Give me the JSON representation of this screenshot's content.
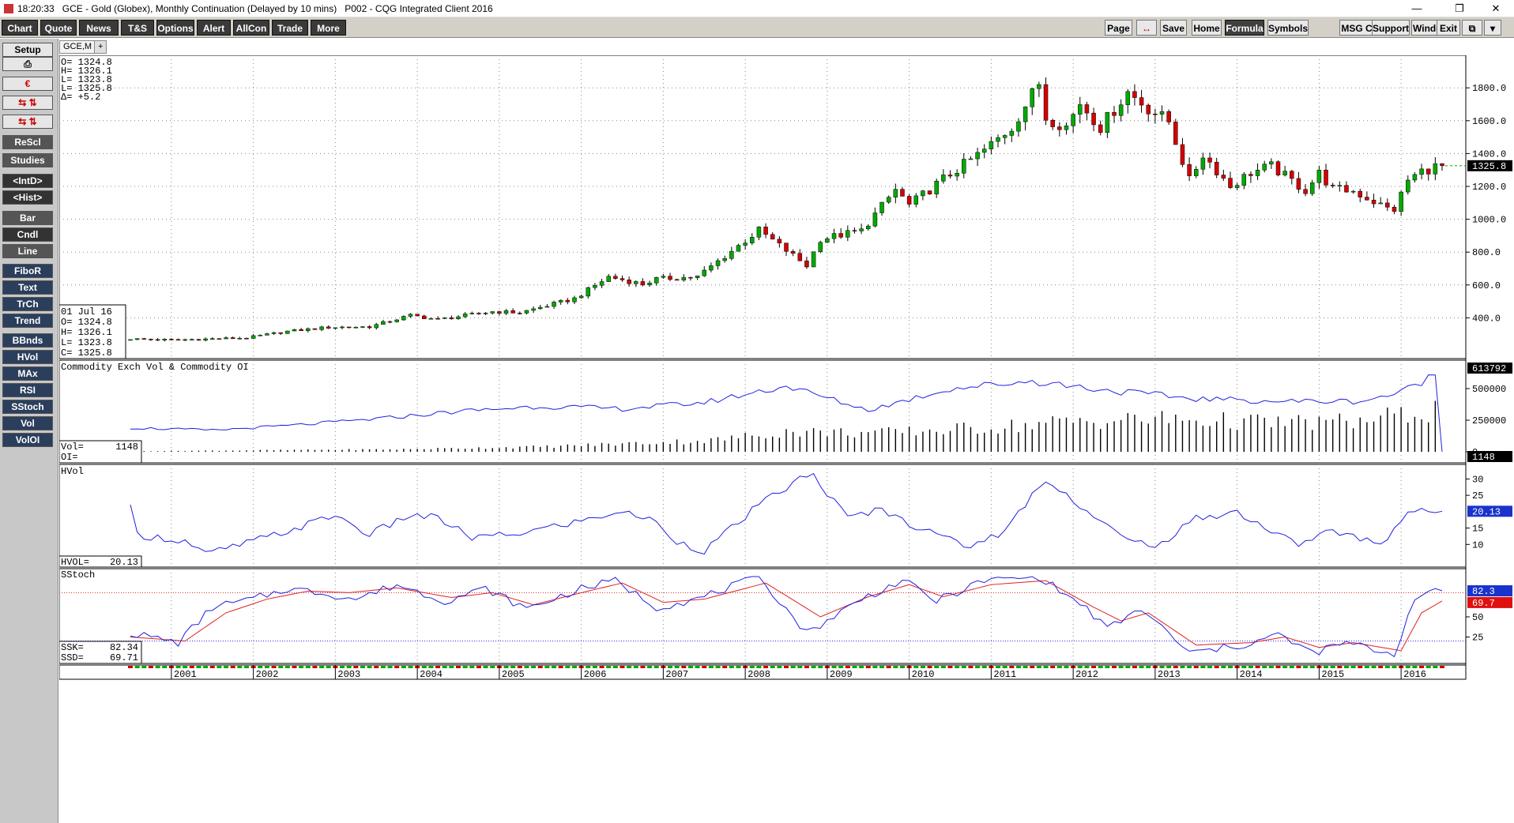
{
  "window": {
    "time": "18:20:33",
    "title": "GCE - Gold (Globex), Monthly Continuation (Delayed by 10 mins)",
    "page_id": "P002 - CQG Integrated Client 2016",
    "minimize": "—",
    "restore": "❐",
    "close": "✕"
  },
  "toolbar": {
    "left": [
      "Chart",
      "Quote",
      "News",
      "T&S",
      "Options",
      "Alert",
      "AllCon",
      "Trade",
      "More"
    ],
    "right": [
      "Page",
      "↔",
      "Save",
      "Home",
      "Formula",
      "Symbols",
      "MSG Cntr",
      "Support",
      "Window",
      "Exit",
      "⧉",
      "▾"
    ]
  },
  "tab": {
    "label": "GCE,M",
    "add": "+"
  },
  "sidebar": [
    {
      "label": "Setup",
      "style": "gray"
    },
    {
      "label": "⎙",
      "style": "gray"
    },
    {
      "label": "€",
      "style": "gray"
    },
    {
      "label": "⇆ ⇅",
      "style": "gray"
    },
    {
      "label": "⇆ ⇅",
      "style": "gray"
    },
    {
      "label": "ReScl",
      "style": "dark"
    },
    {
      "label": "Studies",
      "style": "dark"
    },
    {
      "label": "<IntD>",
      "style": "blk"
    },
    {
      "label": "<Hist>",
      "style": "blk"
    },
    {
      "label": "Bar",
      "style": "dark"
    },
    {
      "label": "Cndl",
      "style": "blk"
    },
    {
      "label": "Line",
      "style": "dark"
    },
    {
      "label": "FiboR",
      "style": "navy"
    },
    {
      "label": "Text",
      "style": "navy"
    },
    {
      "label": "TrCh",
      "style": "navy"
    },
    {
      "label": "Trend",
      "style": "navy"
    },
    {
      "label": "BBnds",
      "style": "navy"
    },
    {
      "label": "HVol",
      "style": "navy"
    },
    {
      "label": "MAx",
      "style": "navy"
    },
    {
      "label": "RSI",
      "style": "navy"
    },
    {
      "label": "SStoch",
      "style": "navy"
    },
    {
      "label": "Vol",
      "style": "navy"
    },
    {
      "label": "VolOI",
      "style": "navy"
    }
  ],
  "ohlc_top": [
    "O=  1324.8",
    "H=  1326.1",
    "L=  1323.8",
    "L=  1325.8",
    "Δ=    +5.2"
  ],
  "ohlc_box": [
    "01 Jul 16",
    "O=   1324.8",
    "H=   1326.1",
    "L=   1323.8",
    "C=   1325.8"
  ],
  "panels": {
    "price": {
      "ticks": [
        "1800.0",
        "1600.0",
        "1400.0",
        "1200.0",
        "1000.0",
        "800.0",
        "600.0",
        "400.0"
      ],
      "last": "1325.8"
    },
    "volume": {
      "title": "Commodity Exch Vol & Commodity OI",
      "ticks": [
        "500000",
        "250000",
        "0"
      ],
      "oi_badge": "613792",
      "vol_badge": "1148",
      "vol_label": "Vol=",
      "vol_value": "1148",
      "oi_label": "OI="
    },
    "hvol": {
      "title": "HVol",
      "ticks": [
        "30",
        "25",
        "15",
        "10"
      ],
      "badge": "20.13",
      "label": "HVOL=",
      "value": "20.13"
    },
    "sstoch": {
      "title": "SStoch",
      "ticks": [
        "50",
        "25"
      ],
      "badge_ssk": "82.3",
      "badge_ssd": "69.7",
      "ssk_label": "SSK=",
      "ssk_value": "82.34",
      "ssd_label": "SSD=",
      "ssd_value": "69.71"
    }
  },
  "years": [
    "2001",
    "2002",
    "2003",
    "2004",
    "2005",
    "2006",
    "2007",
    "2008",
    "2009",
    "2010",
    "2011",
    "2012",
    "2013",
    "2014",
    "2015",
    "2016"
  ],
  "colors": {
    "up": "#00aa00",
    "down": "#d40000",
    "line_blue": "#2020e0",
    "line_red": "#e02020",
    "badge_black": "#000000",
    "badge_blue": "#1a33cc",
    "badge_red": "#e01010"
  },
  "chart_data": {
    "type": "candlestick",
    "start": "2000-07",
    "interval": "monthly",
    "anchors_close": [
      [
        "2000-07",
        272
      ],
      [
        "2001-01",
        265
      ],
      [
        "2001-12",
        278
      ],
      [
        "2002-06",
        318
      ],
      [
        "2002-12",
        342
      ],
      [
        "2003-06",
        346
      ],
      [
        "2003-12",
        415
      ],
      [
        "2004-04",
        390
      ],
      [
        "2004-12",
        438
      ],
      [
        "2005-04",
        432
      ],
      [
        "2005-12",
        517
      ],
      [
        "2006-05",
        650
      ],
      [
        "2006-10",
        605
      ],
      [
        "2006-12",
        636
      ],
      [
        "2007-06",
        650
      ],
      [
        "2007-12",
        838
      ],
      [
        "2008-03",
        933
      ],
      [
        "2008-10",
        718
      ],
      [
        "2008-12",
        880
      ],
      [
        "2009-06",
        930
      ],
      [
        "2009-11",
        1180
      ],
      [
        "2010-01",
        1085
      ],
      [
        "2010-06",
        1245
      ],
      [
        "2010-12",
        1420
      ],
      [
        "2011-04",
        1560
      ],
      [
        "2011-08",
        1828
      ],
      [
        "2011-09",
        1620
      ],
      [
        "2011-12",
        1565
      ],
      [
        "2012-02",
        1710
      ],
      [
        "2012-05",
        1560
      ],
      [
        "2012-09",
        1775
      ],
      [
        "2012-12",
        1675
      ],
      [
        "2013-03",
        1595
      ],
      [
        "2013-06",
        1235
      ],
      [
        "2013-08",
        1395
      ],
      [
        "2013-12",
        1200
      ],
      [
        "2014-03",
        1285
      ],
      [
        "2014-06",
        1322
      ],
      [
        "2014-11",
        1175
      ],
      [
        "2015-01",
        1280
      ],
      [
        "2015-03",
        1185
      ],
      [
        "2015-06",
        1172
      ],
      [
        "2015-11",
        1065
      ],
      [
        "2015-12",
        1061
      ],
      [
        "2016-02",
        1238
      ],
      [
        "2016-04",
        1292
      ],
      [
        "2016-06",
        1320
      ],
      [
        "2016-07",
        1325.8
      ]
    ],
    "volume_oi_note": "volume bars and open interest line, values 0-600000",
    "hvol_anchors": [
      [
        "2000-07",
        21
      ],
      [
        "2000-08",
        13
      ],
      [
        "2001-03",
        11
      ],
      [
        "2001-06",
        7
      ],
      [
        "2002-01",
        11
      ],
      [
        "2002-06",
        14
      ],
      [
        "2003-01",
        19
      ],
      [
        "2003-06",
        13
      ],
      [
        "2003-12",
        19
      ],
      [
        "2004-04",
        18
      ],
      [
        "2004-09",
        12
      ],
      [
        "2005-03",
        13
      ],
      [
        "2006-03",
        18
      ],
      [
        "2006-06",
        20
      ],
      [
        "2006-11",
        18
      ],
      [
        "2007-03",
        11
      ],
      [
        "2007-07",
        8
      ],
      [
        "2008-03",
        22
      ],
      [
        "2008-09",
        30
      ],
      [
        "2008-11",
        31
      ],
      [
        "2009-04",
        18
      ],
      [
        "2009-09",
        21
      ],
      [
        "2010-01",
        16
      ],
      [
        "2010-04",
        15
      ],
      [
        "2010-09",
        9
      ],
      [
        "2011-03",
        14
      ],
      [
        "2011-08",
        28
      ],
      [
        "2011-10",
        29
      ],
      [
        "2012-03",
        20
      ],
      [
        "2012-09",
        11
      ],
      [
        "2013-02",
        10
      ],
      [
        "2013-07",
        18
      ],
      [
        "2014-01",
        20
      ],
      [
        "2014-06",
        14
      ],
      [
        "2014-10",
        10
      ],
      [
        "2015-02",
        14
      ],
      [
        "2015-07",
        12
      ],
      [
        "2015-10",
        10
      ],
      [
        "2016-02",
        20
      ],
      [
        "2016-07",
        20.13
      ]
    ],
    "sstoch_ssk_anchors": [
      [
        "2000-07",
        30
      ],
      [
        "2001-02",
        18
      ],
      [
        "2001-07",
        62
      ],
      [
        "2002-01",
        72
      ],
      [
        "2002-06",
        85
      ],
      [
        "2002-11",
        80
      ],
      [
        "2003-04",
        72
      ],
      [
        "2003-10",
        90
      ],
      [
        "2004-05",
        70
      ],
      [
        "2004-11",
        85
      ],
      [
        "2005-05",
        60
      ],
      [
        "2006-01",
        85
      ],
      [
        "2006-06",
        95
      ],
      [
        "2006-12",
        62
      ],
      [
        "2007-06",
        72
      ],
      [
        "2008-03",
        100
      ],
      [
        "2008-10",
        30
      ],
      [
        "2009-06",
        72
      ],
      [
        "2009-12",
        95
      ],
      [
        "2010-05",
        70
      ],
      [
        "2010-12",
        95
      ],
      [
        "2011-08",
        100
      ],
      [
        "2012-03",
        60
      ],
      [
        "2012-06",
        35
      ],
      [
        "2012-11",
        60
      ],
      [
        "2013-06",
        5
      ],
      [
        "2014-02",
        15
      ],
      [
        "2014-07",
        28
      ],
      [
        "2014-12",
        5
      ],
      [
        "2015-05",
        18
      ],
      [
        "2015-12",
        3
      ],
      [
        "2016-03",
        75
      ],
      [
        "2016-07",
        82.34
      ]
    ],
    "sstoch_ssd_anchors": [
      [
        "2000-07",
        25
      ],
      [
        "2001-03",
        20
      ],
      [
        "2001-09",
        55
      ],
      [
        "2002-03",
        72
      ],
      [
        "2002-09",
        82
      ],
      [
        "2003-03",
        80
      ],
      [
        "2003-10",
        86
      ],
      [
        "2004-06",
        74
      ],
      [
        "2004-12",
        80
      ],
      [
        "2005-06",
        65
      ],
      [
        "2006-02",
        82
      ],
      [
        "2006-07",
        92
      ],
      [
        "2007-01",
        68
      ],
      [
        "2007-07",
        72
      ],
      [
        "2008-04",
        92
      ],
      [
        "2008-12",
        50
      ],
      [
        "2009-07",
        75
      ],
      [
        "2010-01",
        90
      ],
      [
        "2010-06",
        75
      ],
      [
        "2011-01",
        90
      ],
      [
        "2011-09",
        95
      ],
      [
        "2012-04",
        62
      ],
      [
        "2012-08",
        45
      ],
      [
        "2012-12",
        55
      ],
      [
        "2013-07",
        15
      ],
      [
        "2014-03",
        18
      ],
      [
        "2014-08",
        25
      ],
      [
        "2015-01",
        12
      ],
      [
        "2015-06",
        18
      ],
      [
        "2016-01",
        8
      ],
      [
        "2016-04",
        55
      ],
      [
        "2016-07",
        69.71
      ]
    ]
  }
}
